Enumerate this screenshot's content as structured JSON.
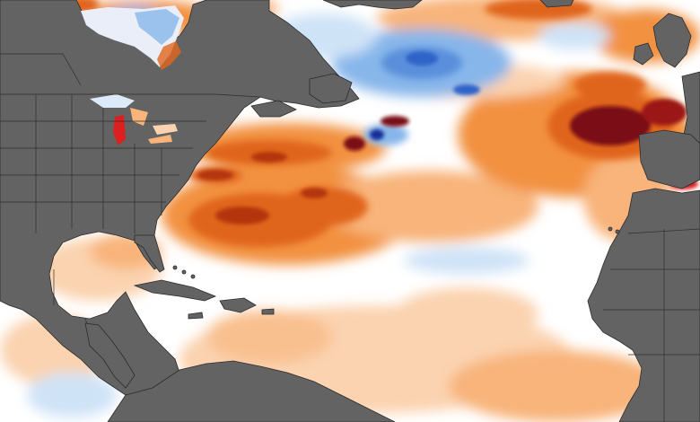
{
  "map": {
    "colors": {
      "land": "#636363",
      "land_border": "#2b2b2b",
      "ocean_neutral": "#ffffff",
      "anomaly_warm_light": "#fbd3b0",
      "anomaly_warm_mid": "#f2913f",
      "anomaly_warm_strong": "#e0651c",
      "anomaly_hot": "#b3360e",
      "anomaly_extreme": "#7a0f12",
      "anomaly_red_spot": "#dc1f1f",
      "anomaly_cool_light": "#cfe3f7",
      "anomaly_cool_mid": "#86b6ea",
      "anomaly_cool_strong": "#2f63c8",
      "anomaly_cold": "#142f97"
    },
    "features": [
      "north-america-landmass",
      "great-lakes",
      "hudson-bay",
      "greenland",
      "british-isles",
      "iberia",
      "north-africa",
      "caribbean-islands",
      "south-america-coast"
    ]
  }
}
